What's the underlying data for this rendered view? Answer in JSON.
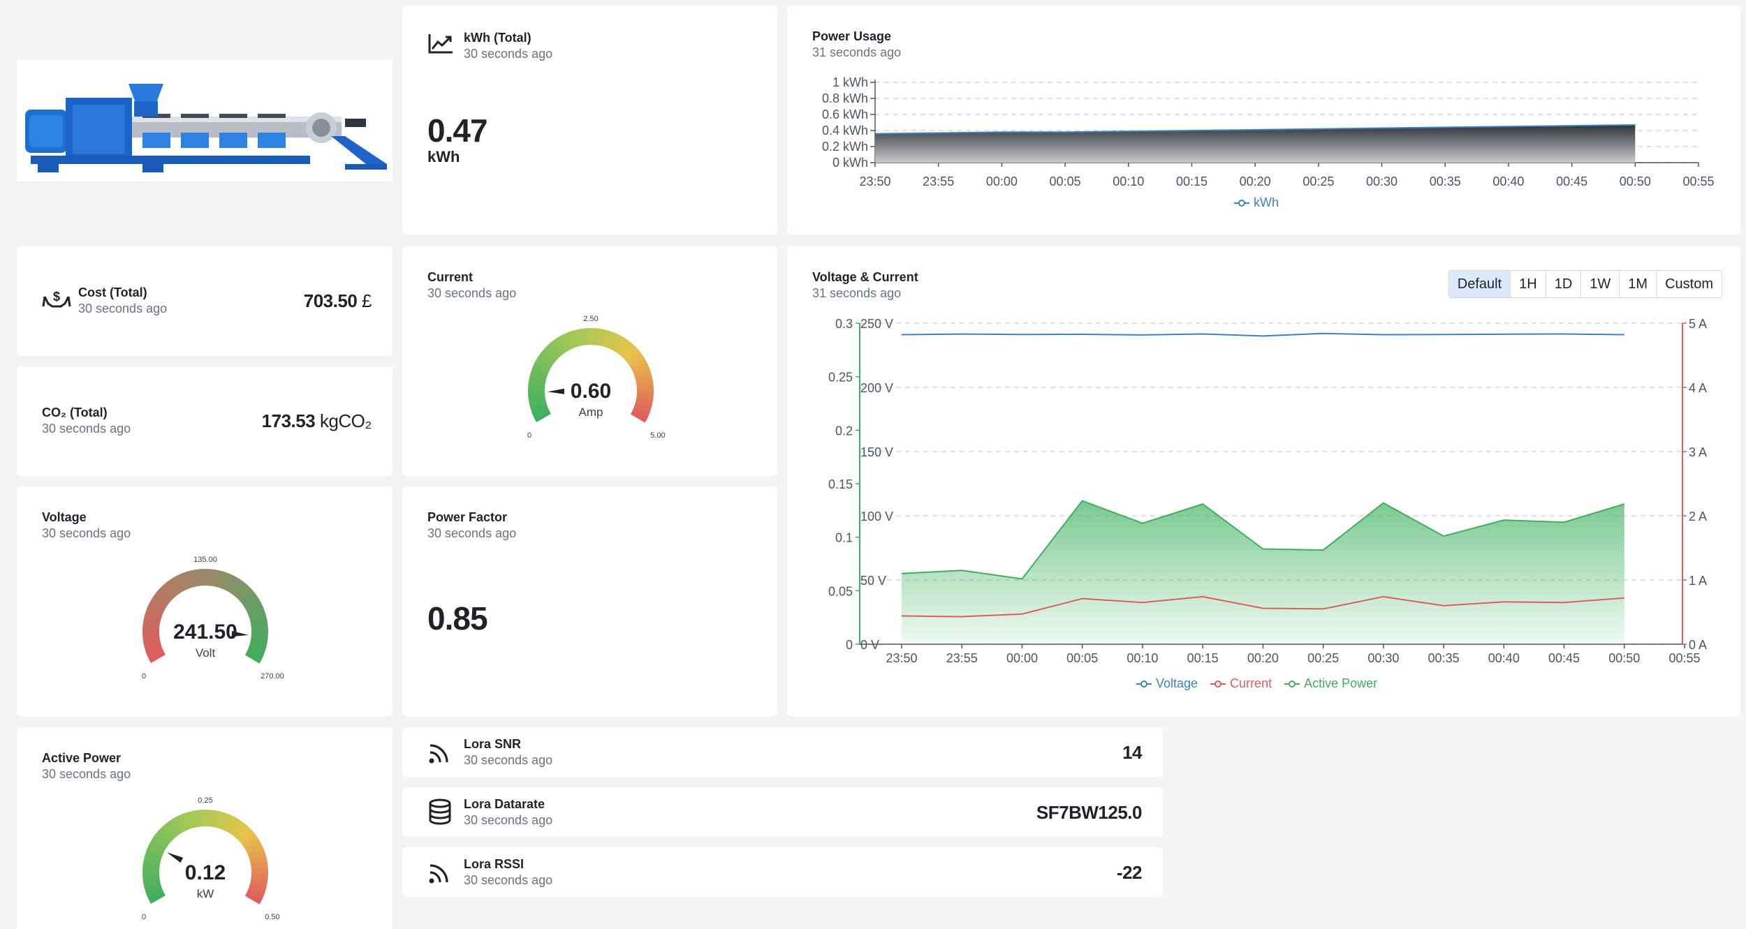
{
  "kwh_total": {
    "title": "kWh (Total)",
    "updated": "30 seconds ago",
    "value": "0.47",
    "unit": "kWh"
  },
  "power_usage": {
    "title": "Power Usage",
    "updated": "31 seconds ago",
    "y_ticks": [
      "1 kWh",
      "0.8 kWh",
      "0.6 kWh",
      "0.4 kWh",
      "0.2 kWh",
      "0 kWh"
    ],
    "x_ticks": [
      "23:50",
      "23:55",
      "00:00",
      "00:05",
      "00:10",
      "00:15",
      "00:20",
      "00:25",
      "00:30",
      "00:35",
      "00:40",
      "00:45",
      "00:50",
      "00:55"
    ],
    "legend": "kWh"
  },
  "cost_total": {
    "title": "Cost (Total)",
    "updated": "30 seconds ago",
    "value": "703.50",
    "unit": "£"
  },
  "co2_total": {
    "title": "CO₂ (Total)",
    "updated": "30 seconds ago",
    "value": "173.53",
    "unit": "kgCO₂"
  },
  "current": {
    "title": "Current",
    "updated": "30 seconds ago",
    "value": "0.60",
    "unit": "Amp",
    "min": "0",
    "mid": "2.50",
    "max": "5.00",
    "fraction": 0.12
  },
  "voltage": {
    "title": "Voltage",
    "updated": "30 seconds ago",
    "value": "241.50",
    "unit": "Volt",
    "min": "0",
    "mid": "135.00",
    "max": "270.00",
    "fraction": 0.894
  },
  "power_factor": {
    "title": "Power Factor",
    "updated": "30 seconds ago",
    "value": "0.85"
  },
  "active_power": {
    "title": "Active Power",
    "updated": "30 seconds ago",
    "value": "0.12",
    "unit": "kW",
    "min": "0",
    "mid": "0.25",
    "max": "0.50",
    "fraction": 0.24
  },
  "voltage_current": {
    "title": "Voltage & Current",
    "updated": "31 seconds ago",
    "ranges": [
      "Default",
      "1H",
      "1D",
      "1W",
      "1M",
      "Custom"
    ],
    "active_range": "Default",
    "left_ticks": [
      "0.3",
      "0.25",
      "0.2",
      "0.15",
      "0.1",
      "0.05",
      "0"
    ],
    "mid_ticks": [
      "250 V",
      "200 V",
      "150 V",
      "100 V",
      "50 V",
      "0 V"
    ],
    "right_ticks": [
      "5 A",
      "4 A",
      "3 A",
      "2 A",
      "1 A",
      "0 A"
    ],
    "x_ticks": [
      "23:50",
      "23:55",
      "00:00",
      "00:05",
      "00:10",
      "00:15",
      "00:20",
      "00:25",
      "00:30",
      "00:35",
      "00:40",
      "00:45",
      "00:50",
      "00:55"
    ],
    "legend": [
      "Voltage",
      "Current",
      "Active Power"
    ]
  },
  "lora_snr": {
    "title": "Lora SNR",
    "updated": "30 seconds ago",
    "value": "14"
  },
  "lora_datarate": {
    "title": "Lora Datarate",
    "updated": "30 seconds ago",
    "value": "SF7BW125.0"
  },
  "lora_rssi": {
    "title": "Lora RSSI",
    "updated": "30 seconds ago",
    "value": "-22"
  },
  "colors": {
    "voltage": "#3b82c4",
    "current": "#e05c5c",
    "active_power": "#3fae5f",
    "kwh": "#3b82c4"
  },
  "chart_data": [
    {
      "type": "area",
      "title": "Power Usage",
      "ylabel": "",
      "xlabel": "",
      "ylim": [
        0,
        1
      ],
      "x": [
        "23:50",
        "23:55",
        "00:00",
        "00:05",
        "00:10",
        "00:15",
        "00:20",
        "00:25",
        "00:30",
        "00:35",
        "00:40",
        "00:45",
        "00:50"
      ],
      "series": [
        {
          "name": "kWh",
          "values": [
            0.36,
            0.37,
            0.38,
            0.38,
            0.39,
            0.4,
            0.41,
            0.42,
            0.43,
            0.44,
            0.45,
            0.46,
            0.47
          ]
        }
      ],
      "legend": "bottom"
    },
    {
      "type": "line",
      "title": "Voltage & Current",
      "x": [
        "23:50",
        "23:55",
        "00:00",
        "00:05",
        "00:10",
        "00:15",
        "00:20",
        "00:25",
        "00:30",
        "00:35",
        "00:40",
        "00:45",
        "00:50"
      ],
      "axes": {
        "left_ylim": [
          0,
          0.3
        ],
        "mid_ylim": [
          0,
          250
        ],
        "right_ylim": [
          0,
          5
        ]
      },
      "series": [
        {
          "name": "Voltage",
          "axis": "mid",
          "values": [
            241.0,
            241.5,
            241.2,
            241.3,
            240.8,
            241.6,
            240.0,
            242.0,
            241.0,
            241.2,
            241.4,
            241.6,
            241.0
          ]
        },
        {
          "name": "Current",
          "axis": "right",
          "values": [
            0.44,
            0.43,
            0.47,
            0.71,
            0.65,
            0.74,
            0.56,
            0.55,
            0.74,
            0.6,
            0.66,
            0.65,
            0.72
          ]
        },
        {
          "name": "Active Power",
          "axis": "left",
          "values": [
            0.066,
            0.069,
            0.061,
            0.134,
            0.113,
            0.131,
            0.089,
            0.088,
            0.132,
            0.101,
            0.116,
            0.114,
            0.131
          ]
        }
      ],
      "legend": "bottom"
    }
  ]
}
